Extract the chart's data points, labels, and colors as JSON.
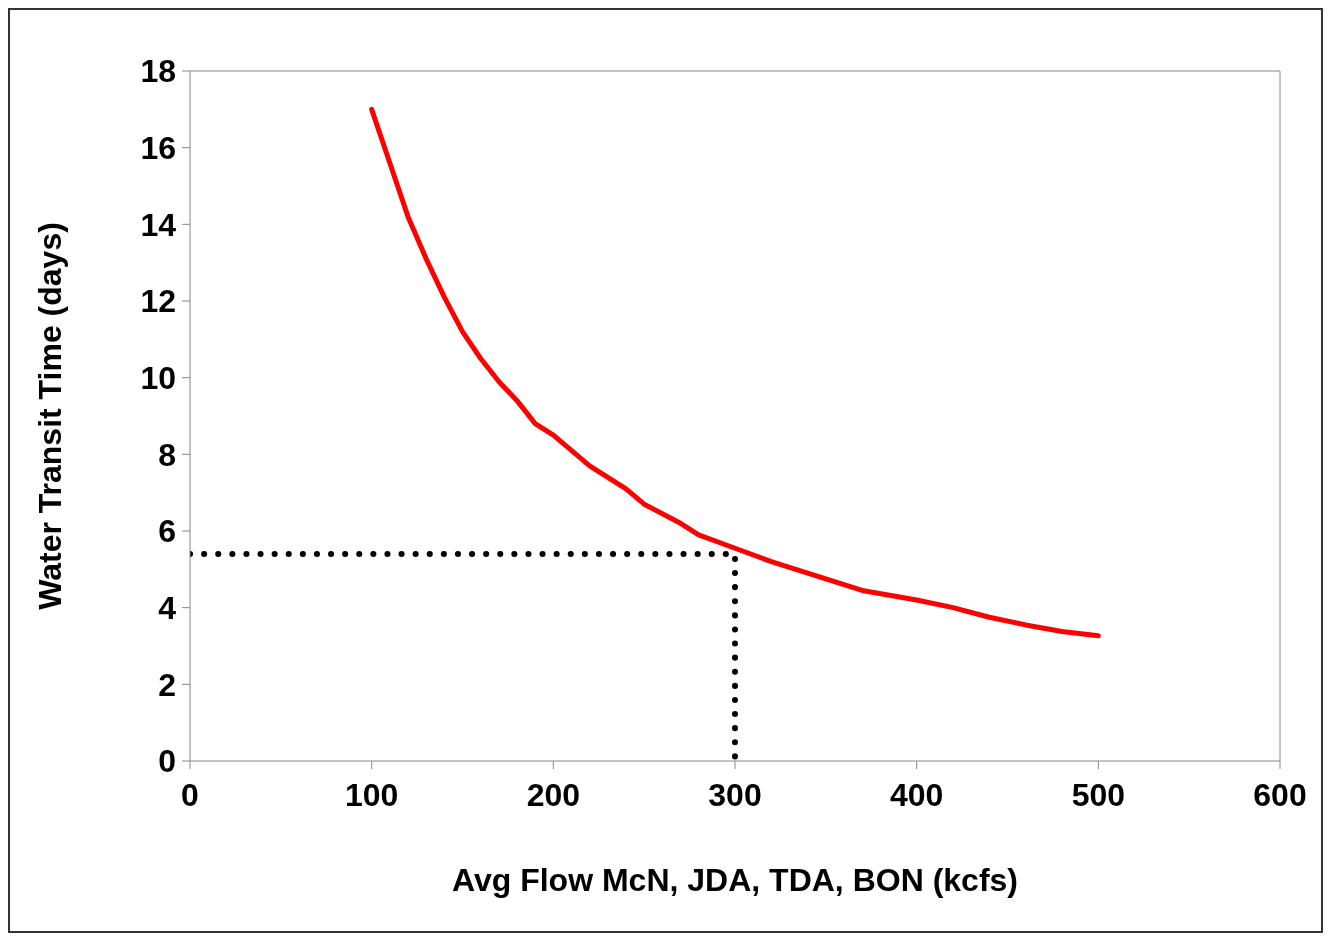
{
  "chart_data": {
    "type": "line",
    "xlabel": "Avg Flow McN, JDA, TDA, BON (kcfs)",
    "ylabel": "Water Transit Time (days)",
    "xlim": [
      0,
      600
    ],
    "xticks": [
      0,
      100,
      200,
      300,
      400,
      500,
      600
    ],
    "ylim": [
      0,
      18
    ],
    "yticks": [
      0,
      2,
      4,
      6,
      8,
      10,
      12,
      14,
      16,
      18
    ],
    "marker": "none",
    "series": [
      {
        "color": "#ff0000",
        "line_style": "solid",
        "x": [
          100,
          110,
          120,
          130,
          140,
          150,
          160,
          170,
          180,
          190,
          200,
          220,
          240,
          250,
          270,
          280,
          300,
          320,
          350,
          370,
          400,
          420,
          440,
          460,
          480,
          500
        ],
        "values": [
          17.0,
          15.6,
          14.2,
          13.1,
          12.1,
          11.2,
          10.5,
          9.9,
          9.4,
          8.8,
          8.5,
          7.7,
          7.1,
          6.7,
          6.2,
          5.9,
          5.55,
          5.2,
          4.75,
          4.45,
          4.2,
          4.0,
          3.75,
          3.55,
          3.38,
          3.27
        ]
      },
      {
        "color": "#000000",
        "line_style": "dotted",
        "x": [
          0,
          300,
          300
        ],
        "values": [
          5.4,
          5.4,
          0
        ]
      }
    ]
  }
}
